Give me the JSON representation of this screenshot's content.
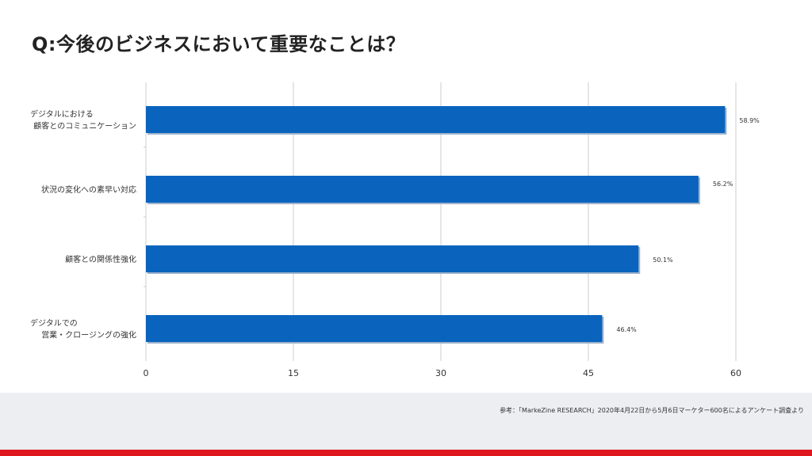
{
  "page": {
    "title": "Q:今後のビジネスにおいて重要なことは？",
    "footnote": "参考：「MarkeZine RESEARCH」2020年4月22日から5月6日マーケター600名によるアンケート調査より"
  },
  "colors": {
    "bar": "#0a64be",
    "bar_shadow": "#9fb3cc",
    "grid": "#cccccc",
    "footer_band": "#eceef2",
    "footer_bar": "#e0161e"
  },
  "chart_data": {
    "type": "bar",
    "orientation": "horizontal",
    "categories": [
      [
        "デジタルにおける",
        "顧客とのコミュニケーション"
      ],
      [
        "状況の変化への素早い対応"
      ],
      [
        "顧客との関係性強化"
      ],
      [
        "デジタルでの",
        "営業・クロージングの強化"
      ]
    ],
    "values": [
      58.9,
      56.2,
      50.1,
      46.4
    ],
    "value_labels": [
      "58.9%",
      "56.2%",
      "50.1%",
      "46.4%"
    ],
    "xlim": [
      0,
      60
    ],
    "x_ticks": [
      0,
      15,
      30,
      45,
      60
    ],
    "grid": true,
    "xlabel": "",
    "ylabel": ""
  }
}
